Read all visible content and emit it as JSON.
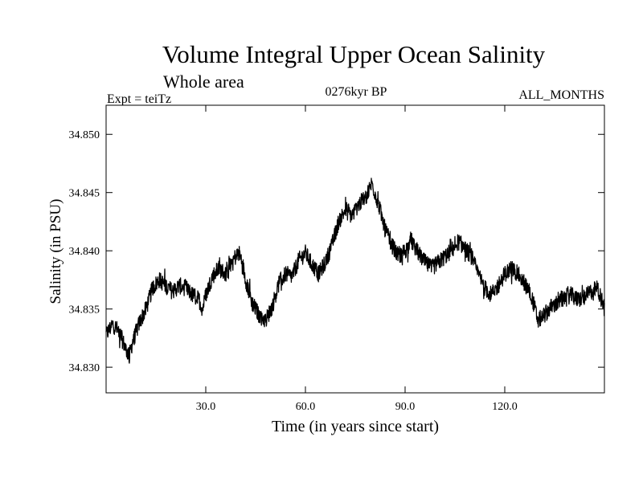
{
  "chart_data": {
    "type": "line",
    "title": "Volume Integral Upper Ocean Salinity",
    "subtitle": "Whole area",
    "experiment": "Expt = teiTz",
    "period": "0276kyr BP",
    "months": "ALL_MONTHS",
    "xlabel": "Time (in years since start)",
    "ylabel": "Salinity (in PSU)",
    "xlim": [
      0,
      150
    ],
    "ylim": [
      34.8278,
      34.8525
    ],
    "xticks": [
      30,
      60,
      90,
      120
    ],
    "xtick_labels": [
      "30.0",
      "60.0",
      "90.0",
      "120.0"
    ],
    "yticks": [
      34.83,
      34.835,
      34.84,
      34.845,
      34.85
    ],
    "ytick_labels": [
      "34.830",
      "34.835",
      "34.840",
      "34.845",
      "34.850"
    ],
    "grid": false,
    "legend": "none",
    "series": [
      {
        "name": "Salinity",
        "color": "#000000",
        "noise_amplitude": 0.0009,
        "x": [
          0,
          2,
          4,
          6,
          7,
          8,
          10,
          12,
          14,
          16,
          18,
          20,
          22,
          24,
          26,
          28,
          29,
          30,
          32,
          34,
          36,
          38,
          40,
          41,
          42,
          44,
          46,
          48,
          50,
          52,
          54,
          56,
          58,
          60,
          62,
          64,
          66,
          68,
          70,
          72,
          74,
          76,
          78,
          80,
          82,
          84,
          86,
          88,
          90,
          92,
          94,
          96,
          98,
          100,
          102,
          104,
          106,
          108,
          110,
          112,
          114,
          116,
          118,
          120,
          122,
          124,
          126,
          128,
          130,
          132,
          134,
          136,
          138,
          140,
          142,
          144,
          146,
          148,
          150
        ],
        "values": [
          34.8328,
          34.8337,
          34.833,
          34.8315,
          34.831,
          34.8322,
          34.8338,
          34.835,
          34.8368,
          34.8375,
          34.837,
          34.8365,
          34.837,
          34.8368,
          34.8362,
          34.8358,
          34.835,
          34.8362,
          34.8378,
          34.8385,
          34.838,
          34.8392,
          34.8398,
          34.839,
          34.8375,
          34.8355,
          34.8345,
          34.834,
          34.8352,
          34.8372,
          34.838,
          34.8378,
          34.8392,
          34.8398,
          34.8388,
          34.838,
          34.839,
          34.8405,
          34.8425,
          34.8435,
          34.843,
          34.844,
          34.8445,
          34.8458,
          34.844,
          34.8418,
          34.8405,
          34.8395,
          34.84,
          34.8408,
          34.8398,
          34.839,
          34.8385,
          34.839,
          34.8395,
          34.84,
          34.8408,
          34.8402,
          34.8395,
          34.838,
          34.8368,
          34.8362,
          34.837,
          34.838,
          34.8385,
          34.838,
          34.8372,
          34.8362,
          34.834,
          34.8345,
          34.8352,
          34.8355,
          34.836,
          34.8362,
          34.8358,
          34.836,
          34.8365,
          34.8368,
          34.835
        ]
      }
    ]
  }
}
